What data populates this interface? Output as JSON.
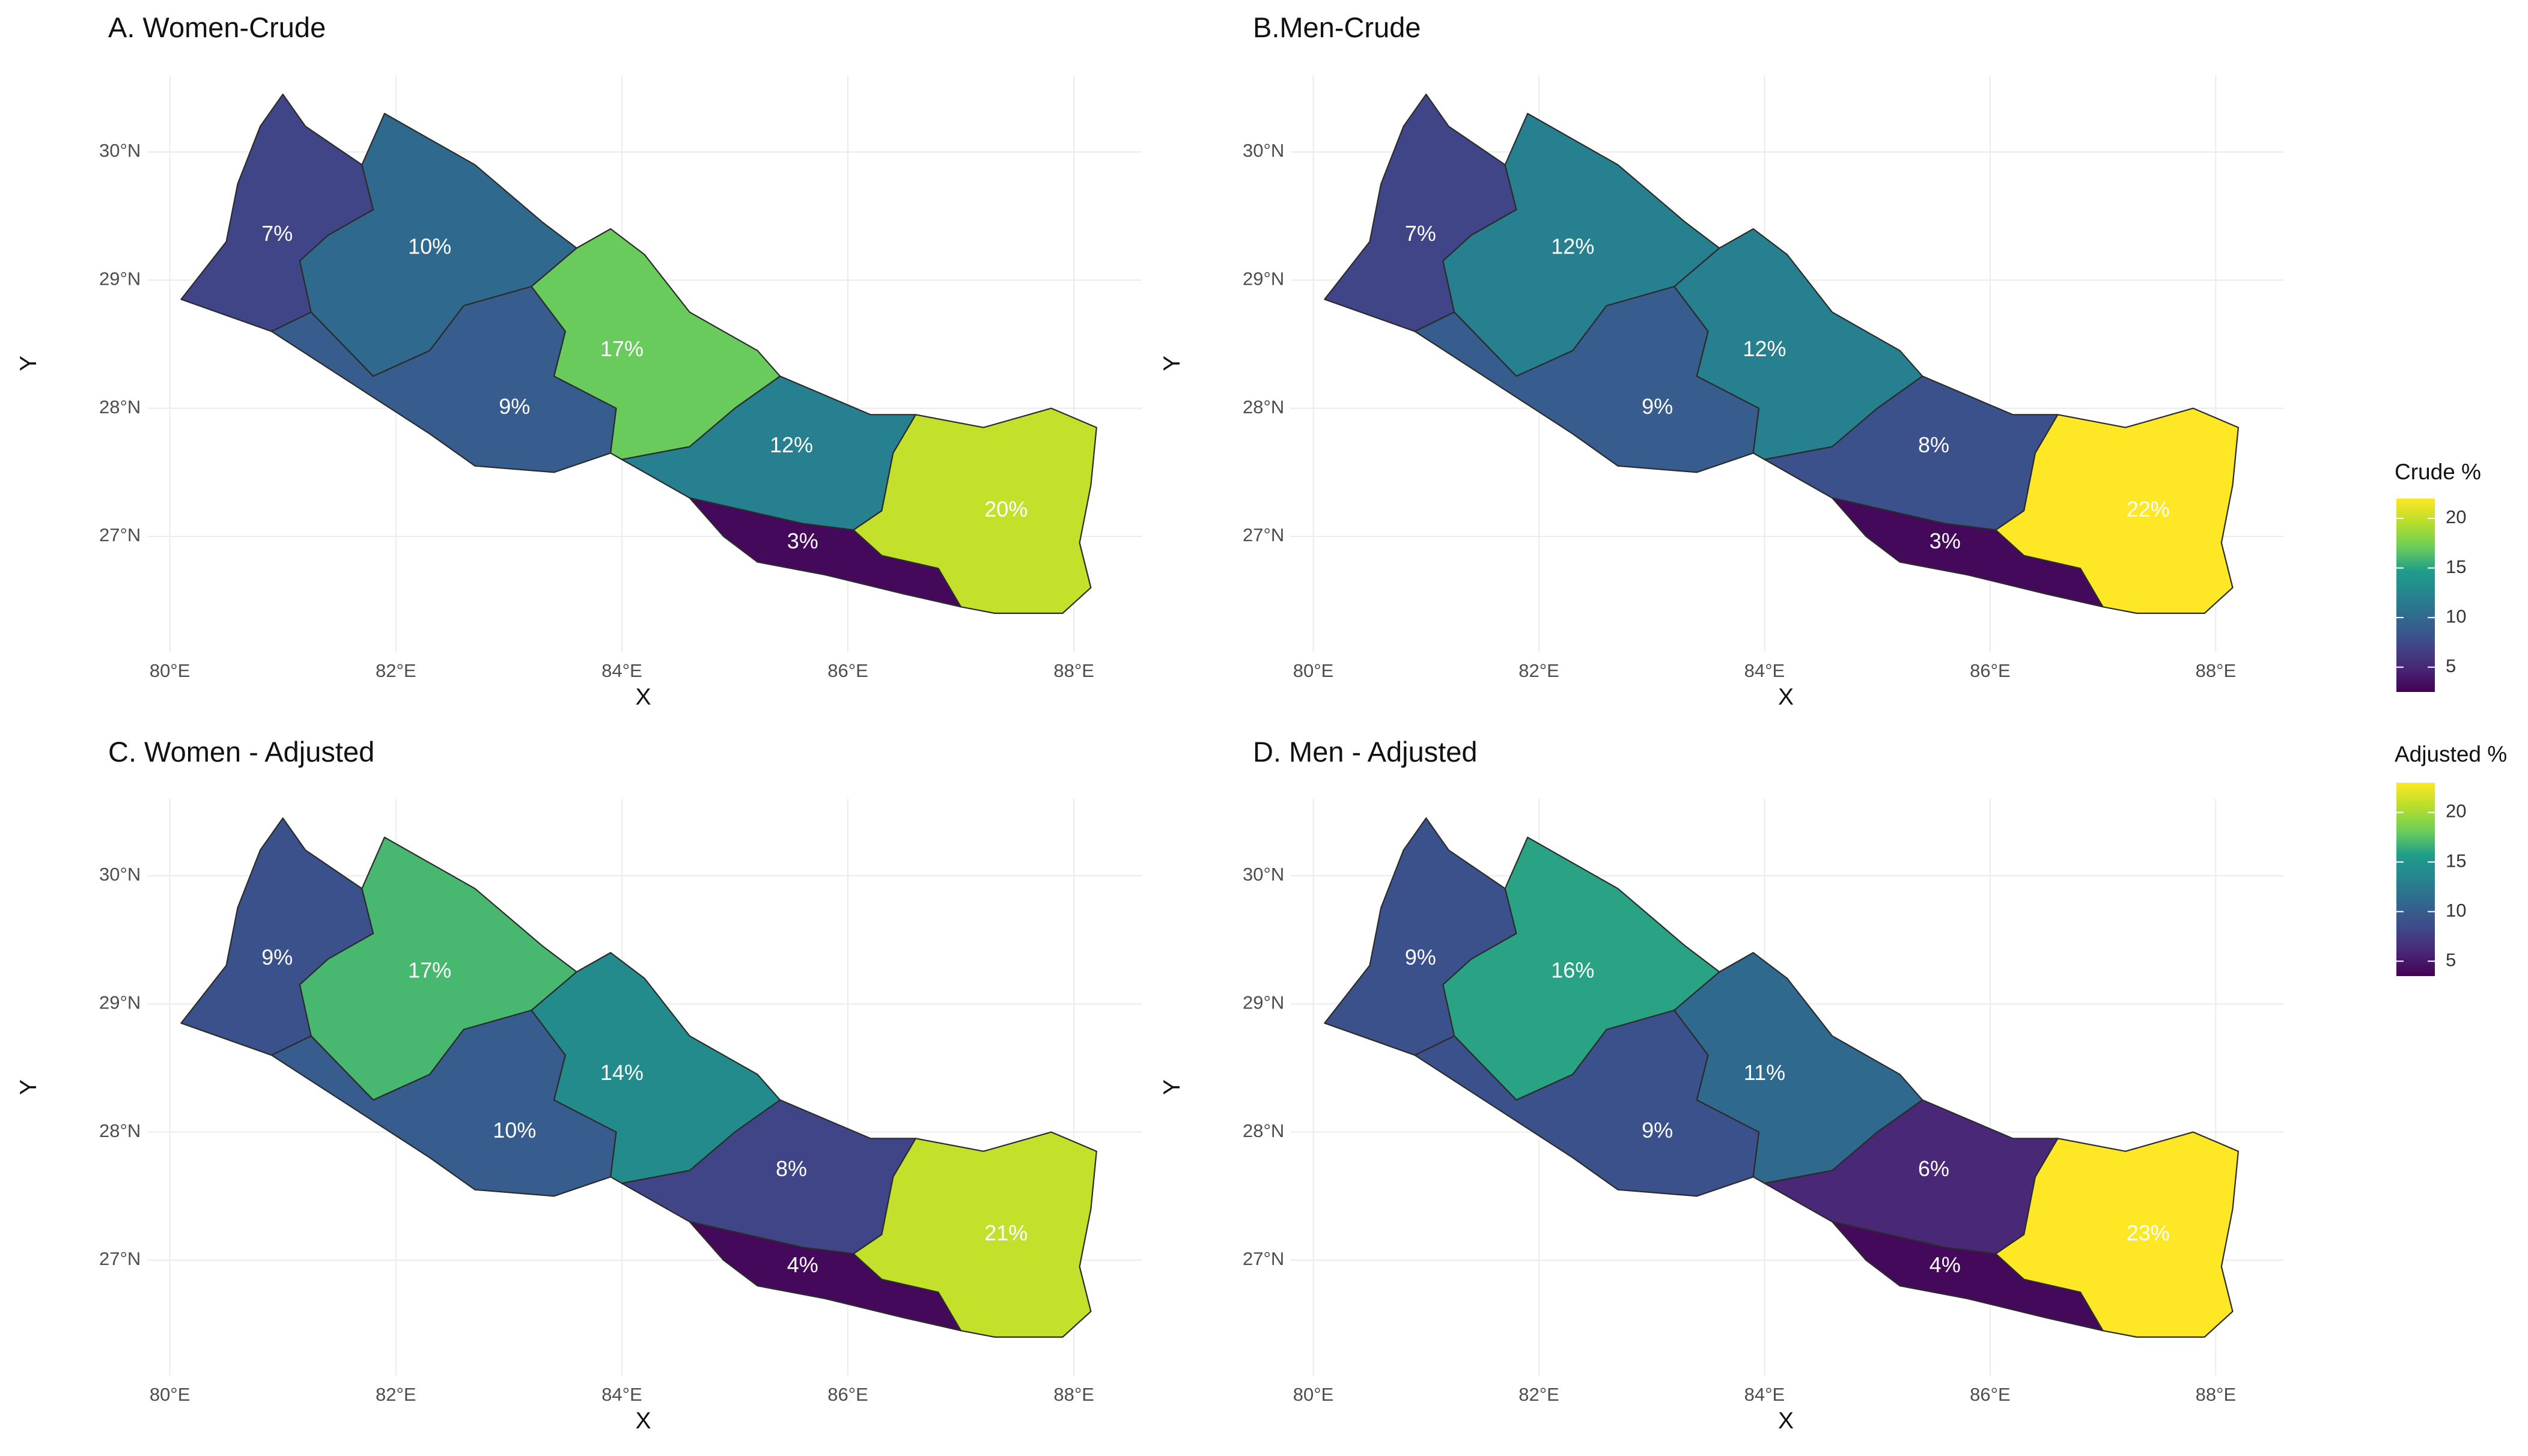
{
  "chart_data": [
    {
      "type": "choropleth",
      "title": "A. Women-Crude",
      "xlabel": "X",
      "ylabel": "Y",
      "x_ticks": [
        "80°E",
        "82°E",
        "84°E",
        "86°E",
        "88°E"
      ],
      "y_ticks": [
        "27°N",
        "28°N",
        "29°N",
        "30°N"
      ],
      "legend": "Crude %",
      "values": [
        7,
        10,
        9,
        17,
        12,
        3,
        20
      ]
    },
    {
      "type": "choropleth",
      "title": "B.Men-Crude",
      "xlabel": "X",
      "ylabel": "Y",
      "x_ticks": [
        "80°E",
        "82°E",
        "84°E",
        "86°E",
        "88°E"
      ],
      "y_ticks": [
        "27°N",
        "28°N",
        "29°N",
        "30°N"
      ],
      "legend": "Crude %",
      "values": [
        7,
        12,
        9,
        12,
        8,
        3,
        22
      ]
    },
    {
      "type": "choropleth",
      "title": "C. Women - Adjusted",
      "xlabel": "X",
      "ylabel": "Y",
      "x_ticks": [
        "80°E",
        "82°E",
        "84°E",
        "86°E",
        "88°E"
      ],
      "y_ticks": [
        "27°N",
        "28°N",
        "29°N",
        "30°N"
      ],
      "legend": "Adjusted %",
      "values": [
        9,
        17,
        10,
        14,
        8,
        4,
        21
      ]
    },
    {
      "type": "choropleth",
      "title": "D. Men - Adjusted",
      "xlabel": "X",
      "ylabel": "Y",
      "x_ticks": [
        "80°E",
        "82°E",
        "84°E",
        "86°E",
        "88°E"
      ],
      "y_ticks": [
        "27°N",
        "28°N",
        "29°N",
        "30°N"
      ],
      "legend": "Adjusted %",
      "values": [
        9,
        16,
        9,
        11,
        6,
        4,
        23
      ]
    }
  ],
  "legends": [
    {
      "title": "Crude %",
      "min": 2.5,
      "max": 22,
      "ticks": [
        "5",
        "10",
        "15",
        "20"
      ]
    },
    {
      "title": "Adjusted %",
      "min": 3.5,
      "max": 23,
      "ticks": [
        "5",
        "10",
        "15",
        "20"
      ]
    }
  ]
}
